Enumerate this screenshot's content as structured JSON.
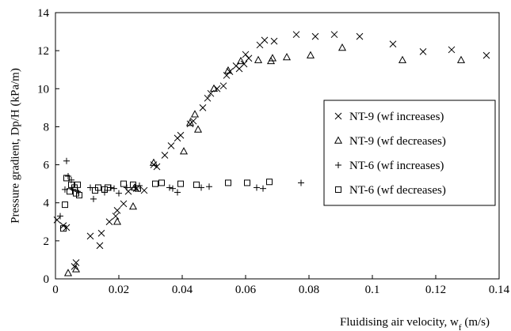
{
  "chart_data": {
    "type": "scatter",
    "xlabel": "Fluidising air velocity, w",
    "xlabel_sub": "f",
    "xlabel_unit": " (m/s)",
    "ylabel": "Pressure gradient, Dp/H (kPa/m)",
    "xlim": [
      0,
      0.14
    ],
    "ylim": [
      0,
      14
    ],
    "xticks": [
      0,
      0.02,
      0.04,
      0.06,
      0.08,
      0.1,
      0.12,
      0.14
    ],
    "xtick_labels": [
      "0",
      "0.02",
      "0.04",
      "0.06",
      "0.08",
      "0.1",
      "0.12",
      "0.14"
    ],
    "yticks": [
      0,
      2,
      4,
      6,
      8,
      10,
      12,
      14
    ],
    "ytick_labels": [
      "0",
      "2",
      "4",
      "6",
      "8",
      "10",
      "12",
      "14"
    ],
    "grid": false,
    "legend_position": "right",
    "series": [
      {
        "name": "NT-9 (wf increases)",
        "marker": "x",
        "points": [
          [
            0.0005,
            3.1
          ],
          [
            0.0025,
            2.8
          ],
          [
            0.0035,
            2.7
          ],
          [
            0.006,
            0.65
          ],
          [
            0.0065,
            0.85
          ],
          [
            0.011,
            2.25
          ],
          [
            0.014,
            1.75
          ],
          [
            0.0145,
            2.4
          ],
          [
            0.017,
            3.0
          ],
          [
            0.019,
            3.3
          ],
          [
            0.0195,
            3.6
          ],
          [
            0.0215,
            3.95
          ],
          [
            0.023,
            4.6
          ],
          [
            0.0255,
            4.75
          ],
          [
            0.028,
            4.65
          ],
          [
            0.031,
            6.0
          ],
          [
            0.032,
            5.9
          ],
          [
            0.0345,
            6.5
          ],
          [
            0.0365,
            7.0
          ],
          [
            0.0385,
            7.4
          ],
          [
            0.0395,
            7.55
          ],
          [
            0.0425,
            8.15
          ],
          [
            0.0435,
            8.3
          ],
          [
            0.0465,
            9.0
          ],
          [
            0.048,
            9.5
          ],
          [
            0.049,
            9.75
          ],
          [
            0.051,
            10.0
          ],
          [
            0.053,
            10.15
          ],
          [
            0.054,
            10.7
          ],
          [
            0.055,
            10.9
          ],
          [
            0.057,
            11.2
          ],
          [
            0.058,
            11.05
          ],
          [
            0.0595,
            11.3
          ],
          [
            0.06,
            11.8
          ],
          [
            0.061,
            11.6
          ],
          [
            0.0645,
            12.3
          ],
          [
            0.066,
            12.55
          ],
          [
            0.069,
            12.5
          ],
          [
            0.076,
            12.85
          ],
          [
            0.082,
            12.75
          ],
          [
            0.088,
            12.85
          ],
          [
            0.096,
            12.75
          ],
          [
            0.1065,
            12.35
          ],
          [
            0.116,
            11.95
          ],
          [
            0.125,
            12.05
          ],
          [
            0.136,
            11.75
          ]
        ]
      },
      {
        "name": "NT-9 (wf decreases)",
        "marker": "triangle",
        "points": [
          [
            0.004,
            0.3
          ],
          [
            0.0065,
            0.5
          ],
          [
            0.0195,
            3.0
          ],
          [
            0.0245,
            3.8
          ],
          [
            0.025,
            4.8
          ],
          [
            0.031,
            6.1
          ],
          [
            0.0405,
            6.7
          ],
          [
            0.0425,
            8.2
          ],
          [
            0.044,
            8.65
          ],
          [
            0.045,
            7.85
          ],
          [
            0.05,
            10.0
          ],
          [
            0.0545,
            10.95
          ],
          [
            0.0585,
            11.45
          ],
          [
            0.064,
            11.5
          ],
          [
            0.068,
            11.45
          ],
          [
            0.0685,
            11.6
          ],
          [
            0.073,
            11.65
          ],
          [
            0.0805,
            11.75
          ],
          [
            0.0905,
            12.15
          ],
          [
            0.1095,
            11.5
          ],
          [
            0.128,
            11.5
          ]
        ]
      },
      {
        "name": "NT-6 (wf increases)",
        "marker": "plus",
        "points": [
          [
            0.0015,
            3.3
          ],
          [
            0.003,
            4.7
          ],
          [
            0.0035,
            6.2
          ],
          [
            0.004,
            5.4
          ],
          [
            0.005,
            5.2
          ],
          [
            0.0055,
            4.7
          ],
          [
            0.007,
            4.6
          ],
          [
            0.011,
            4.8
          ],
          [
            0.012,
            4.2
          ],
          [
            0.0155,
            4.55
          ],
          [
            0.0175,
            4.8
          ],
          [
            0.0185,
            4.75
          ],
          [
            0.02,
            4.5
          ],
          [
            0.0225,
            4.8
          ],
          [
            0.0265,
            4.9
          ],
          [
            0.036,
            4.8
          ],
          [
            0.037,
            4.75
          ],
          [
            0.0385,
            4.55
          ],
          [
            0.046,
            4.8
          ],
          [
            0.0485,
            4.85
          ],
          [
            0.0635,
            4.8
          ],
          [
            0.0655,
            4.75
          ],
          [
            0.0775,
            5.05
          ]
        ]
      },
      {
        "name": "NT-6 (wf decreases)",
        "marker": "square",
        "points": [
          [
            0.0025,
            2.65
          ],
          [
            0.003,
            3.9
          ],
          [
            0.0035,
            5.3
          ],
          [
            0.0045,
            4.6
          ],
          [
            0.005,
            4.95
          ],
          [
            0.006,
            4.8
          ],
          [
            0.0065,
            4.5
          ],
          [
            0.007,
            4.95
          ],
          [
            0.0075,
            4.4
          ],
          [
            0.0125,
            4.65
          ],
          [
            0.0135,
            4.8
          ],
          [
            0.0155,
            4.7
          ],
          [
            0.0165,
            4.8
          ],
          [
            0.0215,
            5.0
          ],
          [
            0.0245,
            4.95
          ],
          [
            0.026,
            4.75
          ],
          [
            0.0315,
            5.0
          ],
          [
            0.0335,
            5.05
          ],
          [
            0.0395,
            5.0
          ],
          [
            0.0445,
            4.95
          ],
          [
            0.0545,
            5.05
          ],
          [
            0.0605,
            5.05
          ],
          [
            0.0675,
            5.1
          ]
        ]
      }
    ]
  }
}
